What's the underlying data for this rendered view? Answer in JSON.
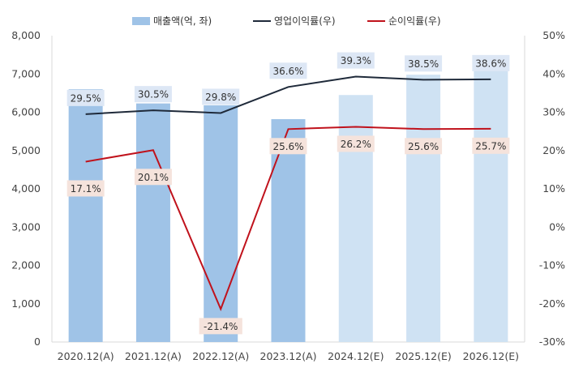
{
  "chart_data": {
    "type": "bar+line",
    "title": "",
    "categories": [
      "2020.12(A)",
      "2021.12(A)",
      "2022.12(A)",
      "2023.12(A)",
      "2024.12(E)",
      "2025.12(E)",
      "2026.12(E)"
    ],
    "series": [
      {
        "name": "매출액(억, 좌)",
        "kind": "bar",
        "axis": "left",
        "values": [
          6600,
          6230,
          6180,
          5820,
          6450,
          6980,
          7100
        ],
        "color_actual": "#9fc3e7",
        "color_estimate": "#cfe2f3"
      },
      {
        "name": "영업이익률(우)",
        "kind": "line",
        "axis": "right",
        "values": [
          29.5,
          30.5,
          29.8,
          36.6,
          39.3,
          38.5,
          38.6
        ],
        "labels": [
          "29.5%",
          "30.5%",
          "29.8%",
          "36.6%",
          "39.3%",
          "38.5%",
          "38.6%"
        ],
        "color": "#1f2a3a",
        "label_bg": "#dde7f5"
      },
      {
        "name": "순이익률(우)",
        "kind": "line",
        "axis": "right",
        "values": [
          17.1,
          20.1,
          -21.4,
          25.6,
          26.2,
          25.6,
          25.7
        ],
        "labels": [
          "17.1%",
          "20.1%",
          "-21.4%",
          "25.6%",
          "26.2%",
          "25.6%",
          "25.7%"
        ],
        "color": "#c0121c",
        "label_bg": "#f5e3dc"
      }
    ],
    "left_axis": {
      "ylim": [
        0,
        8000
      ],
      "ticks": [
        0,
        1000,
        2000,
        3000,
        4000,
        5000,
        6000,
        7000,
        8000
      ],
      "tick_labels": [
        "0",
        "1,000",
        "2,000",
        "3,000",
        "4,000",
        "5,000",
        "6,000",
        "7,000",
        "8,000"
      ]
    },
    "right_axis": {
      "ylim": [
        -30,
        50
      ],
      "ticks": [
        -30,
        -20,
        -10,
        0,
        10,
        20,
        30,
        40,
        50
      ],
      "tick_labels": [
        "-30%",
        "-20%",
        "-10%",
        "0%",
        "10%",
        "20%",
        "30%",
        "40%",
        "50%"
      ]
    },
    "grid": false,
    "legend_position": "top-center"
  }
}
